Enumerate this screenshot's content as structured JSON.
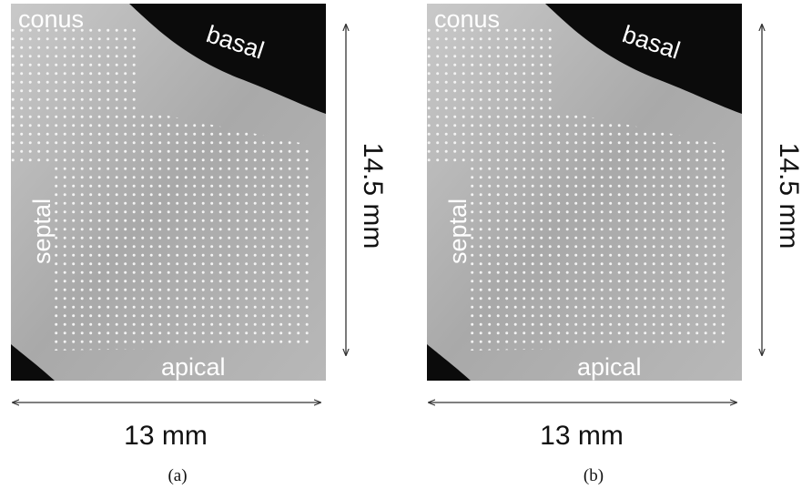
{
  "panels": [
    {
      "labels": {
        "top_left": "conus",
        "top_right": "basal",
        "left": "septal",
        "bottom": "apical"
      },
      "width_label": "13 mm",
      "height_label": "14.5 mm",
      "caption": "(a)"
    },
    {
      "labels": {
        "top_left": "conus",
        "top_right": "basal",
        "left": "septal",
        "bottom": "apical"
      },
      "width_label": "13 mm",
      "height_label": "14.5 mm",
      "caption": "(b)"
    }
  ]
}
